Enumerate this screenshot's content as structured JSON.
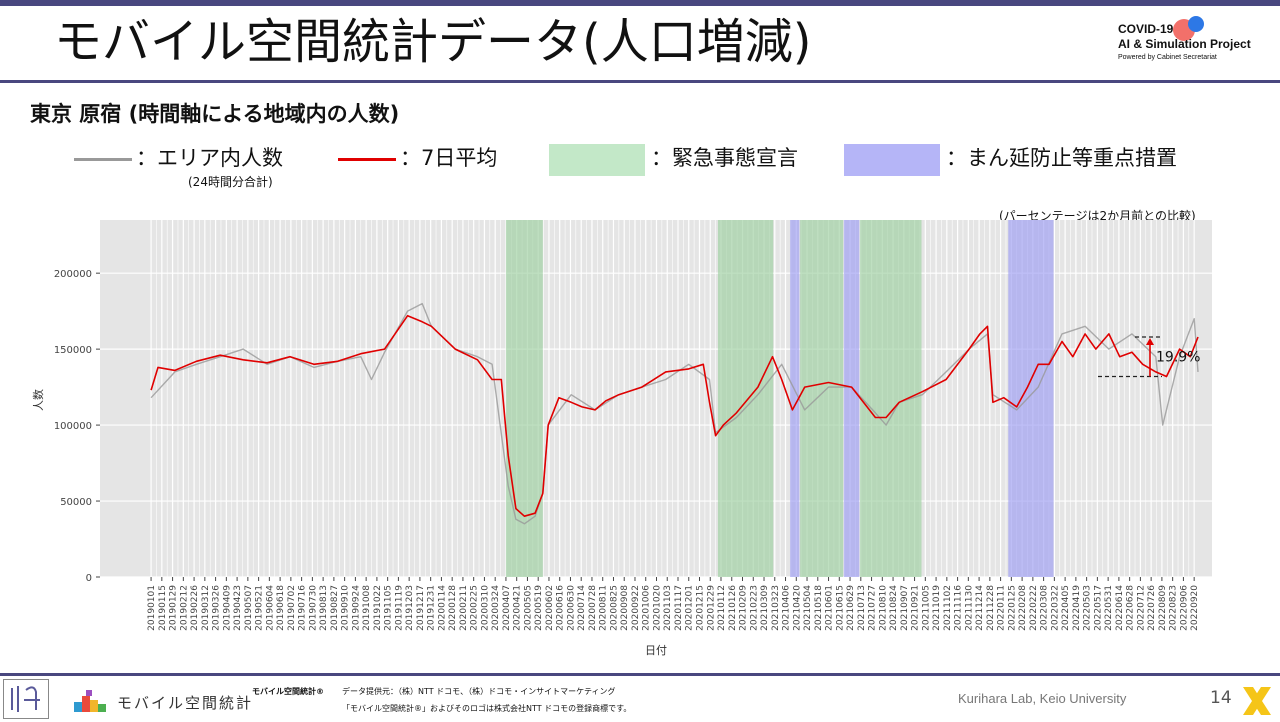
{
  "slide": {
    "title": "モバイル空間統計データ(人口増減)",
    "subtitle": "東京 原宿 (時間軸による地域内の人数)",
    "page_number": "14",
    "lab_credit": "Kurihara Lab, Keio University"
  },
  "logo": {
    "line1": "COVID-19",
    "line2": "AI & Simulation Project",
    "line3": "Powered by Cabinet Secretariat",
    "dot_colors": [
      "#f1605a",
      "#2d78e6"
    ]
  },
  "legend": {
    "area_total": "：エリア内人数",
    "area_total_note": "(24時間分合計)",
    "avg7": "：7日平均",
    "emergency": "：緊急事態宣言",
    "semi_emergency": "：まん延防止等重点措置",
    "colors": {
      "area_total": "#999999",
      "avg7": "#e00000",
      "emergency": "#c3e8c8",
      "semi_emergency": "#b5b5f7"
    }
  },
  "ratio_note": "(パーセンテージは2か月前との比較)",
  "footer": {
    "brand": "モバイル空間統計®",
    "provider": "データ提供元：（株）NTT ドコモ、（株）ドコモ・インサイトマーケティング",
    "trademark": "「モバイル空間統計®」およびそのロゴは株式会社NTT ドコモの登録商標です。",
    "logo_text": "モバイル空間統計"
  },
  "chart_data": {
    "type": "line",
    "xlabel": "日付",
    "ylabel": "人数",
    "ylim": [
      0,
      235000
    ],
    "yticks": [
      0,
      50000,
      100000,
      150000,
      200000
    ],
    "ytick_labels": [
      "0",
      "50000",
      "100000",
      "150000",
      "200000"
    ],
    "grid": true,
    "x_tick_labels": [
      "20190101",
      "20190115",
      "20190129",
      "20190212",
      "20190226",
      "20190312",
      "20190326",
      "20190409",
      "20190423",
      "20190507",
      "20190521",
      "20190604",
      "20190618",
      "20190702",
      "20190716",
      "20190730",
      "20190813",
      "20190827",
      "20190910",
      "20190924",
      "20191008",
      "20191022",
      "20191105",
      "20191119",
      "20191203",
      "20191217",
      "20191231",
      "20200114",
      "20200128",
      "20200211",
      "20200225",
      "20200310",
      "20200324",
      "20200407",
      "20200421",
      "20200505",
      "20200519",
      "20200602",
      "20200616",
      "20200630",
      "20200714",
      "20200728",
      "20200811",
      "20200825",
      "20200908",
      "20200922",
      "20201006",
      "20201020",
      "20201103",
      "20201117",
      "20201201",
      "20201215",
      "20201229",
      "20210112",
      "20210126",
      "20210209",
      "20210223",
      "20210309",
      "20210323",
      "20210406",
      "20210420",
      "20210504",
      "20210518",
      "20210601",
      "20210615",
      "20210629",
      "20210713",
      "20210727",
      "20210810",
      "20210824",
      "20210907",
      "20210921",
      "20211005",
      "20211019",
      "20211102",
      "20211116",
      "20211130",
      "20211214",
      "20211228",
      "20220111",
      "20220125",
      "20220208",
      "20220222",
      "20220308",
      "20220322",
      "20220405",
      "20220419",
      "20220503",
      "20220517",
      "20220531",
      "20220614",
      "20220628",
      "20220712",
      "20220726",
      "20220809",
      "20220823",
      "20220906",
      "20220920"
    ],
    "shaded_periods": [
      {
        "kind": "emergency",
        "start": "20200407",
        "end": "20200525"
      },
      {
        "kind": "emergency",
        "start": "20210108",
        "end": "20210321"
      },
      {
        "kind": "semi_emergency",
        "start": "20210412",
        "end": "20210424"
      },
      {
        "kind": "emergency",
        "start": "20210425",
        "end": "20210620"
      },
      {
        "kind": "semi_emergency",
        "start": "20210621",
        "end": "20210711"
      },
      {
        "kind": "emergency",
        "start": "20210712",
        "end": "20210930"
      },
      {
        "kind": "semi_emergency",
        "start": "20220121",
        "end": "20220321"
      }
    ],
    "series": [
      {
        "name": "エリア内人数",
        "kind": "daily",
        "x": [
          "20190101",
          "20190201",
          "20190301",
          "20190401",
          "20190501",
          "20190601",
          "20190701",
          "20190801",
          "20190901",
          "20191001",
          "20191015",
          "20191101",
          "20191201",
          "20191220",
          "20200101",
          "20200201",
          "20200301",
          "20200320",
          "20200410",
          "20200420",
          "20200501",
          "20200515",
          "20200525",
          "20200601",
          "20200701",
          "20200801",
          "20200901",
          "20201001",
          "20201101",
          "20201201",
          "20201228",
          "20210105",
          "20210201",
          "20210301",
          "20210401",
          "20210501",
          "20210601",
          "20210701",
          "20210801",
          "20210815",
          "20210901",
          "20211001",
          "20211101",
          "20211201",
          "20211225",
          "20220101",
          "20220201",
          "20220301",
          "20220401",
          "20220501",
          "20220601",
          "20220701",
          "20220801",
          "20220810",
          "20220901",
          "20220920",
          "20220925"
        ],
        "y": [
          118000,
          135000,
          140000,
          145000,
          150000,
          140000,
          145000,
          138000,
          142000,
          145000,
          130000,
          148000,
          175000,
          180000,
          165000,
          150000,
          145000,
          140000,
          60000,
          38000,
          35000,
          40000,
          55000,
          100000,
          120000,
          110000,
          120000,
          125000,
          130000,
          140000,
          130000,
          95000,
          105000,
          120000,
          140000,
          110000,
          125000,
          125000,
          108000,
          100000,
          115000,
          120000,
          135000,
          150000,
          160000,
          120000,
          110000,
          125000,
          160000,
          165000,
          150000,
          160000,
          145000,
          100000,
          145000,
          170000,
          135000
        ]
      },
      {
        "name": "7日平均",
        "kind": "avg7",
        "x": [
          "20190101",
          "20190110",
          "20190201",
          "20190301",
          "20190401",
          "20190501",
          "20190601",
          "20190701",
          "20190801",
          "20190901",
          "20191001",
          "20191101",
          "20191201",
          "20191220",
          "20200101",
          "20200201",
          "20200301",
          "20200320",
          "20200401",
          "20200410",
          "20200420",
          "20200501",
          "20200515",
          "20200525",
          "20200601",
          "20200615",
          "20200701",
          "20200715",
          "20200801",
          "20200815",
          "20200901",
          "20201001",
          "20201101",
          "20201201",
          "20201220",
          "20201228",
          "20210105",
          "20210115",
          "20210201",
          "20210301",
          "20210320",
          "20210401",
          "20210415",
          "20210501",
          "20210601",
          "20210701",
          "20210801",
          "20210815",
          "20210901",
          "20211001",
          "20211101",
          "20211201",
          "20211215",
          "20211225",
          "20220101",
          "20220115",
          "20220201",
          "20220215",
          "20220301",
          "20220315",
          "20220401",
          "20220415",
          "20220501",
          "20220515",
          "20220601",
          "20220615",
          "20220701",
          "20220715",
          "20220801",
          "20220815",
          "20220901",
          "20220915",
          "20220925"
        ],
        "y": [
          123000,
          138000,
          136000,
          142000,
          146000,
          143000,
          141000,
          145000,
          140000,
          142000,
          147000,
          150000,
          172000,
          168000,
          165000,
          150000,
          143000,
          130000,
          130000,
          80000,
          45000,
          40000,
          42000,
          55000,
          100000,
          118000,
          115000,
          112000,
          110000,
          116000,
          120000,
          125000,
          135000,
          137000,
          140000,
          115000,
          93000,
          100000,
          108000,
          125000,
          145000,
          130000,
          110000,
          125000,
          128000,
          125000,
          105000,
          105000,
          115000,
          122000,
          130000,
          150000,
          160000,
          165000,
          115000,
          118000,
          112000,
          125000,
          140000,
          140000,
          155000,
          145000,
          160000,
          150000,
          160000,
          145000,
          148000,
          140000,
          135000,
          132000,
          150000,
          145000,
          158000
        ]
      }
    ],
    "annotation": {
      "text": "19.9%",
      "from_value": 132000,
      "to_value": 158000
    }
  }
}
